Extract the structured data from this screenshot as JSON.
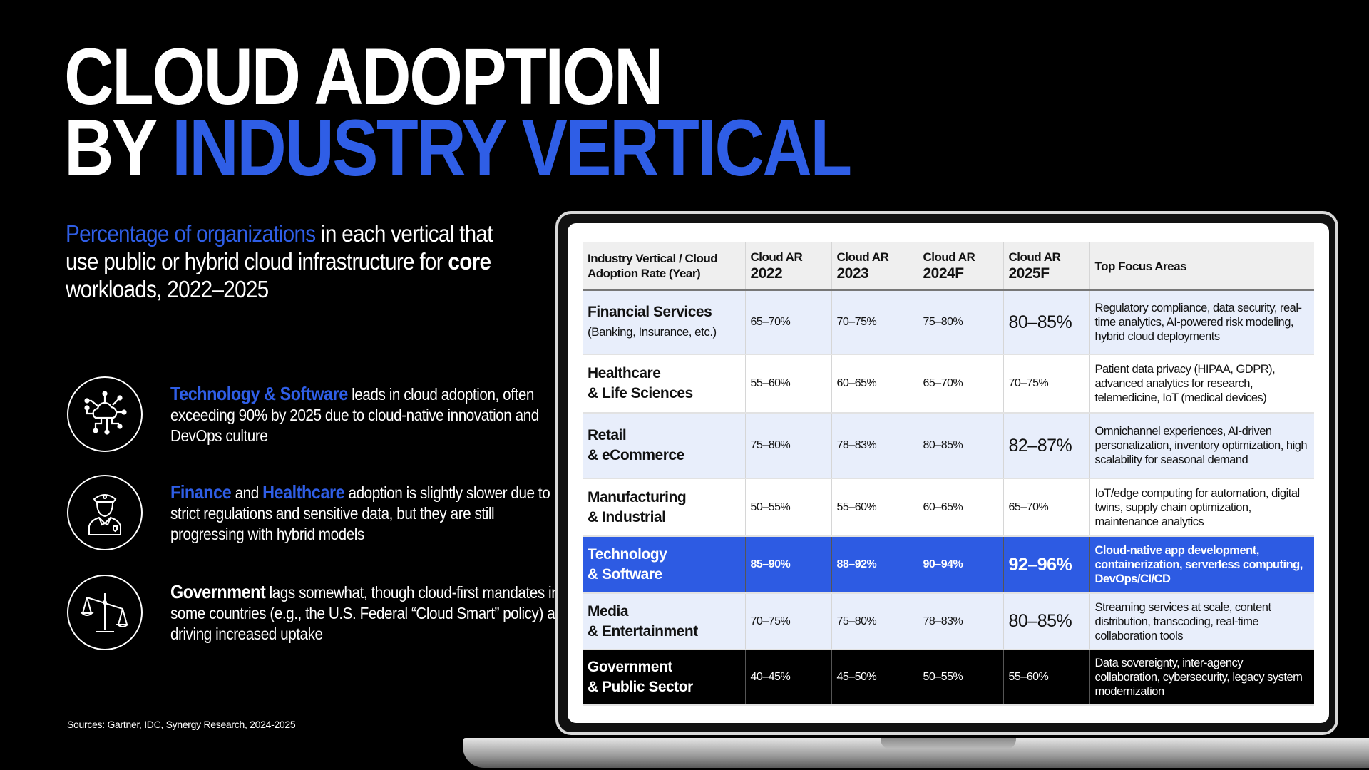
{
  "title": {
    "line1": "CLOUD ADOPTION",
    "line2_prefix": "BY ",
    "line2_highlight": "INDUSTRY VERTICAL"
  },
  "subtitle": {
    "highlight": "Percentage of organizations",
    "part1": " in each vertical that use public or hybrid cloud infrastructure for ",
    "bold": "core",
    "part2": " workloads, 2022–2025"
  },
  "points": [
    {
      "icon": "cloud-network-icon",
      "hl1": "Technology & Software",
      "text": " leads in cloud adoption, often exceeding 90% by 2025 due to cloud-native innovation and DevOps culture"
    },
    {
      "icon": "officer-icon",
      "hl1": "Finance",
      "mid": " and ",
      "hl2": "Healthcare",
      "text": " adoption is slightly slower due to strict regulations and sensitive data, but they are still progressing with hybrid models"
    },
    {
      "icon": "scales-icon",
      "hl1": "Government",
      "text": " lags somewhat, though cloud-first mandates in some countries (e.g., the U.S. Federal “Cloud Smart” policy) are driving increased uptake"
    }
  ],
  "sources": "Sources: Gartner, IDC, Synergy Research, 2024-2025",
  "table": {
    "headers": [
      {
        "top": "Industry Vertical / Cloud",
        "bottom": "Adoption Rate (Year)"
      },
      {
        "top": "Cloud AR",
        "bottom": "2022"
      },
      {
        "top": "Cloud AR",
        "bottom": "2023"
      },
      {
        "top": "Cloud AR",
        "bottom": "2024F"
      },
      {
        "top": "Cloud AR",
        "bottom": "2025F"
      },
      {
        "top": "Top Focus Areas",
        "bottom": ""
      }
    ],
    "rows": [
      {
        "style": "alt",
        "name": "Financial Services",
        "sub": "(Banking, Insurance, etc.)",
        "v2022": "65–70%",
        "v2023": "70–75%",
        "v2024": "75–80%",
        "v2025": "80–85%",
        "big": true,
        "focus": "Regulatory compliance, data security, real-time analytics, AI-powered risk modeling, hybrid cloud deployments"
      },
      {
        "style": "plain",
        "name": "Healthcare",
        "sub2": "& Life Sciences",
        "v2022": "55–60%",
        "v2023": "60–65%",
        "v2024": "65–70%",
        "v2025": "70–75%",
        "big": false,
        "focus": "Patient data privacy (HIPAA, GDPR), advanced analytics for research, telemedicine, IoT (medical devices)"
      },
      {
        "style": "alt",
        "name": "Retail",
        "sub2": "& eCommerce",
        "v2022": "75–80%",
        "v2023": "78–83%",
        "v2024": "80–85%",
        "v2025": "82–87%",
        "big": true,
        "focus": "Omnichannel experiences, AI-driven personalization, inventory optimization, high scalability for seasonal demand"
      },
      {
        "style": "plain",
        "name": "Manufacturing",
        "sub2": "& Industrial",
        "v2022": "50–55%",
        "v2023": "55–60%",
        "v2024": "60–65%",
        "v2025": "65–70%",
        "big": false,
        "focus": "IoT/edge computing for automation, digital twins, supply chain optimization, maintenance analytics"
      },
      {
        "style": "hl",
        "name": "Technology",
        "sub2": "& Software",
        "v2022": "85–90%",
        "v2023": "88–92%",
        "v2024": "90–94%",
        "v2025": "92–96%",
        "big": true,
        "focus": "Cloud-native app development, containerization, serverless computing, DevOps/CI/CD"
      },
      {
        "style": "alt",
        "name": "Media",
        "sub2": "& Entertainment",
        "v2022": "70–75%",
        "v2023": "75–80%",
        "v2024": "78–83%",
        "v2025": "80–85%",
        "big": true,
        "focus": "Streaming services at scale, content distribution, transcoding, real-time collaboration tools"
      },
      {
        "style": "dark",
        "name": "Government",
        "sub2": "& Public Sector",
        "v2022": "40–45%",
        "v2023": "45–50%",
        "v2024": "50–55%",
        "v2025": "55–60%",
        "big": false,
        "focus": "Data sovereignty, inter-agency collaboration, cybersecurity, legacy system modernization"
      }
    ]
  },
  "colors": {
    "accent": "#2d5be3",
    "row_alt": "#e8eefb",
    "background": "#000000"
  }
}
